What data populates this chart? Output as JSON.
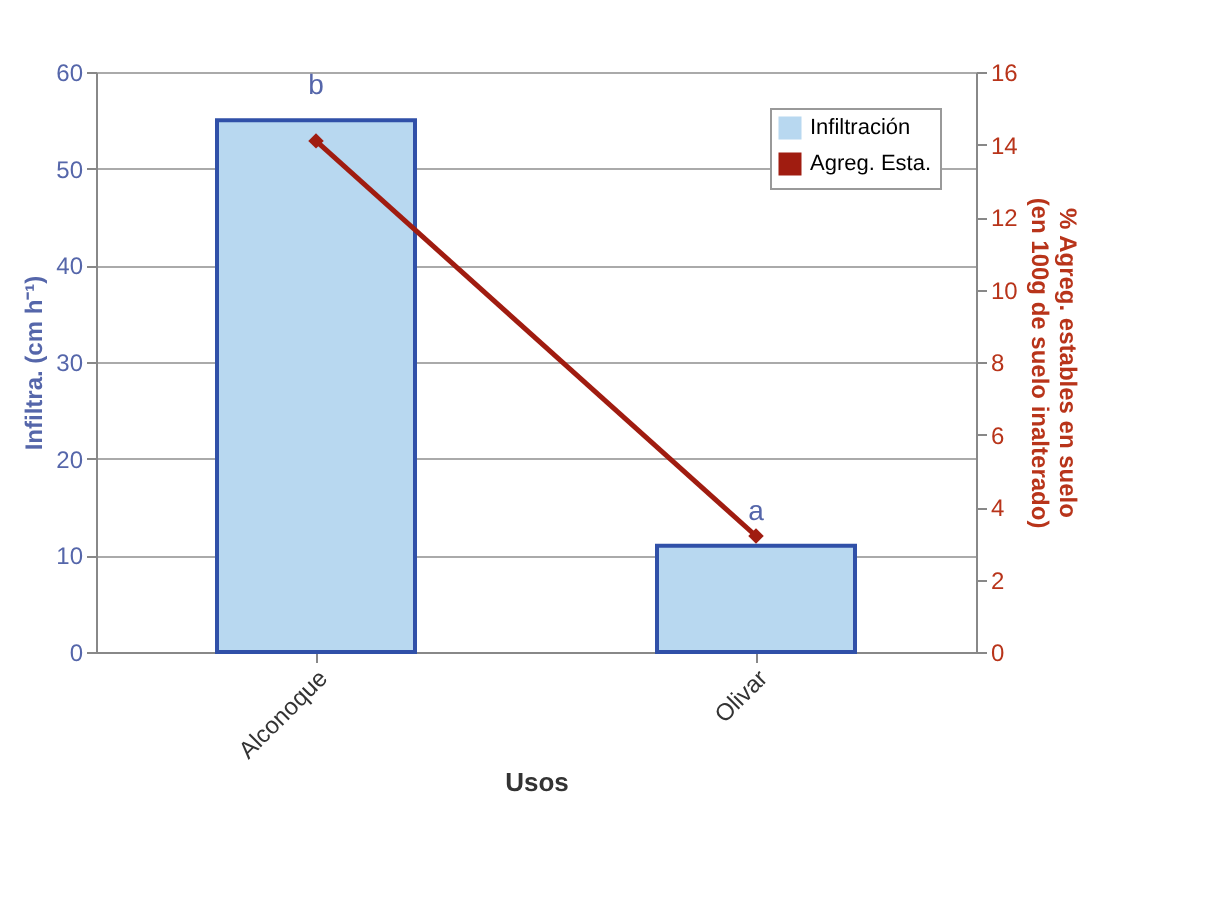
{
  "chart_data": {
    "type": "bar",
    "xlabel": "Usos",
    "ylabel": "Infiltra. (cm h⁻¹)",
    "y2label": "% Agreg. estables en suelo (en 100g de suelo inalterado)",
    "categories": [
      "Alconoque",
      "Olivar"
    ],
    "series": [
      {
        "name": "Infiltración",
        "color": "#b8d8f0",
        "values": [
          55,
          11
        ]
      },
      {
        "name": "Agreg. Esta.",
        "type": "line",
        "axis": "y2",
        "color": "#a01c10",
        "values": [
          14.1,
          3.2
        ]
      }
    ],
    "ylim": [
      0,
      60
    ],
    "yticks": [
      0,
      10,
      20,
      30,
      40,
      50,
      60
    ],
    "y2lim": [
      0,
      16
    ],
    "y2ticks": [
      0,
      2,
      4,
      6,
      8,
      10,
      12,
      14,
      16
    ],
    "grid": "y",
    "legend": "top right",
    "marker": "diamond",
    "annotations": [
      {
        "text": "b",
        "x": "Alconoque",
        "y": 55
      },
      {
        "text": "a",
        "x": "Olivar",
        "y": 11
      }
    ]
  }
}
